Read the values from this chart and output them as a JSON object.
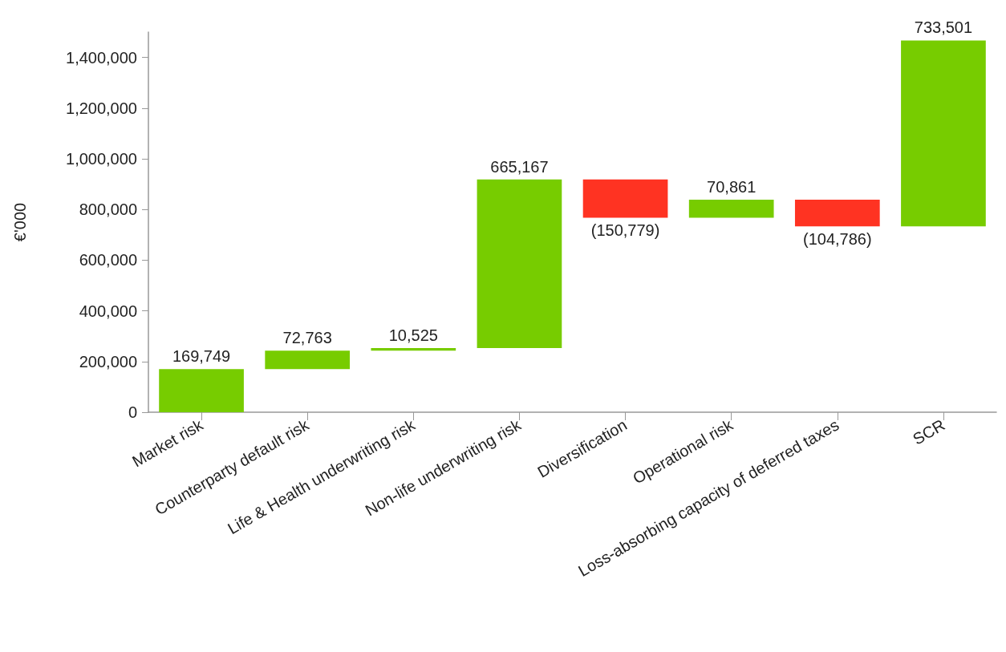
{
  "chart_data": {
    "type": "bar",
    "ylabel": "€'000",
    "categories": [
      "Market risk",
      "Counterparty default risk",
      "Life & Health underwriting risk",
      "Non-life underwriting risk",
      "Diversification",
      "Operational risk",
      "Loss-absorbing capacity of deferred taxes",
      "SCR"
    ],
    "values": [
      169749,
      72763,
      10525,
      665167,
      -150779,
      70861,
      -104786,
      733501
    ],
    "base": [
      0,
      169749,
      242512,
      253037,
      918204,
      767425,
      838286,
      733500
    ],
    "value_labels": [
      "169,749",
      "72,763",
      "10,525",
      "665,167",
      "(150,779)",
      "70,861",
      "(104,786)",
      "733,501"
    ],
    "colors": [
      "#77cc00",
      "#77cc00",
      "#77cc00",
      "#77cc00",
      "#ff3322",
      "#77cc00",
      "#ff3322",
      "#77cc00"
    ],
    "ylim": [
      0,
      1500000
    ],
    "yticks": [
      0,
      {
        "value": 200000,
        "label": "200,000"
      },
      {
        "value": 400000,
        "label": "400,000"
      },
      {
        "value": 600000,
        "label": "600,000"
      },
      {
        "value": 800000,
        "label": "800,000"
      },
      {
        "value": 1000000,
        "label": "1,000,000"
      },
      {
        "value": 1200000,
        "label": "1,200,000"
      },
      {
        "value": 1400000,
        "label": "1,400,000"
      }
    ],
    "grid": false
  }
}
